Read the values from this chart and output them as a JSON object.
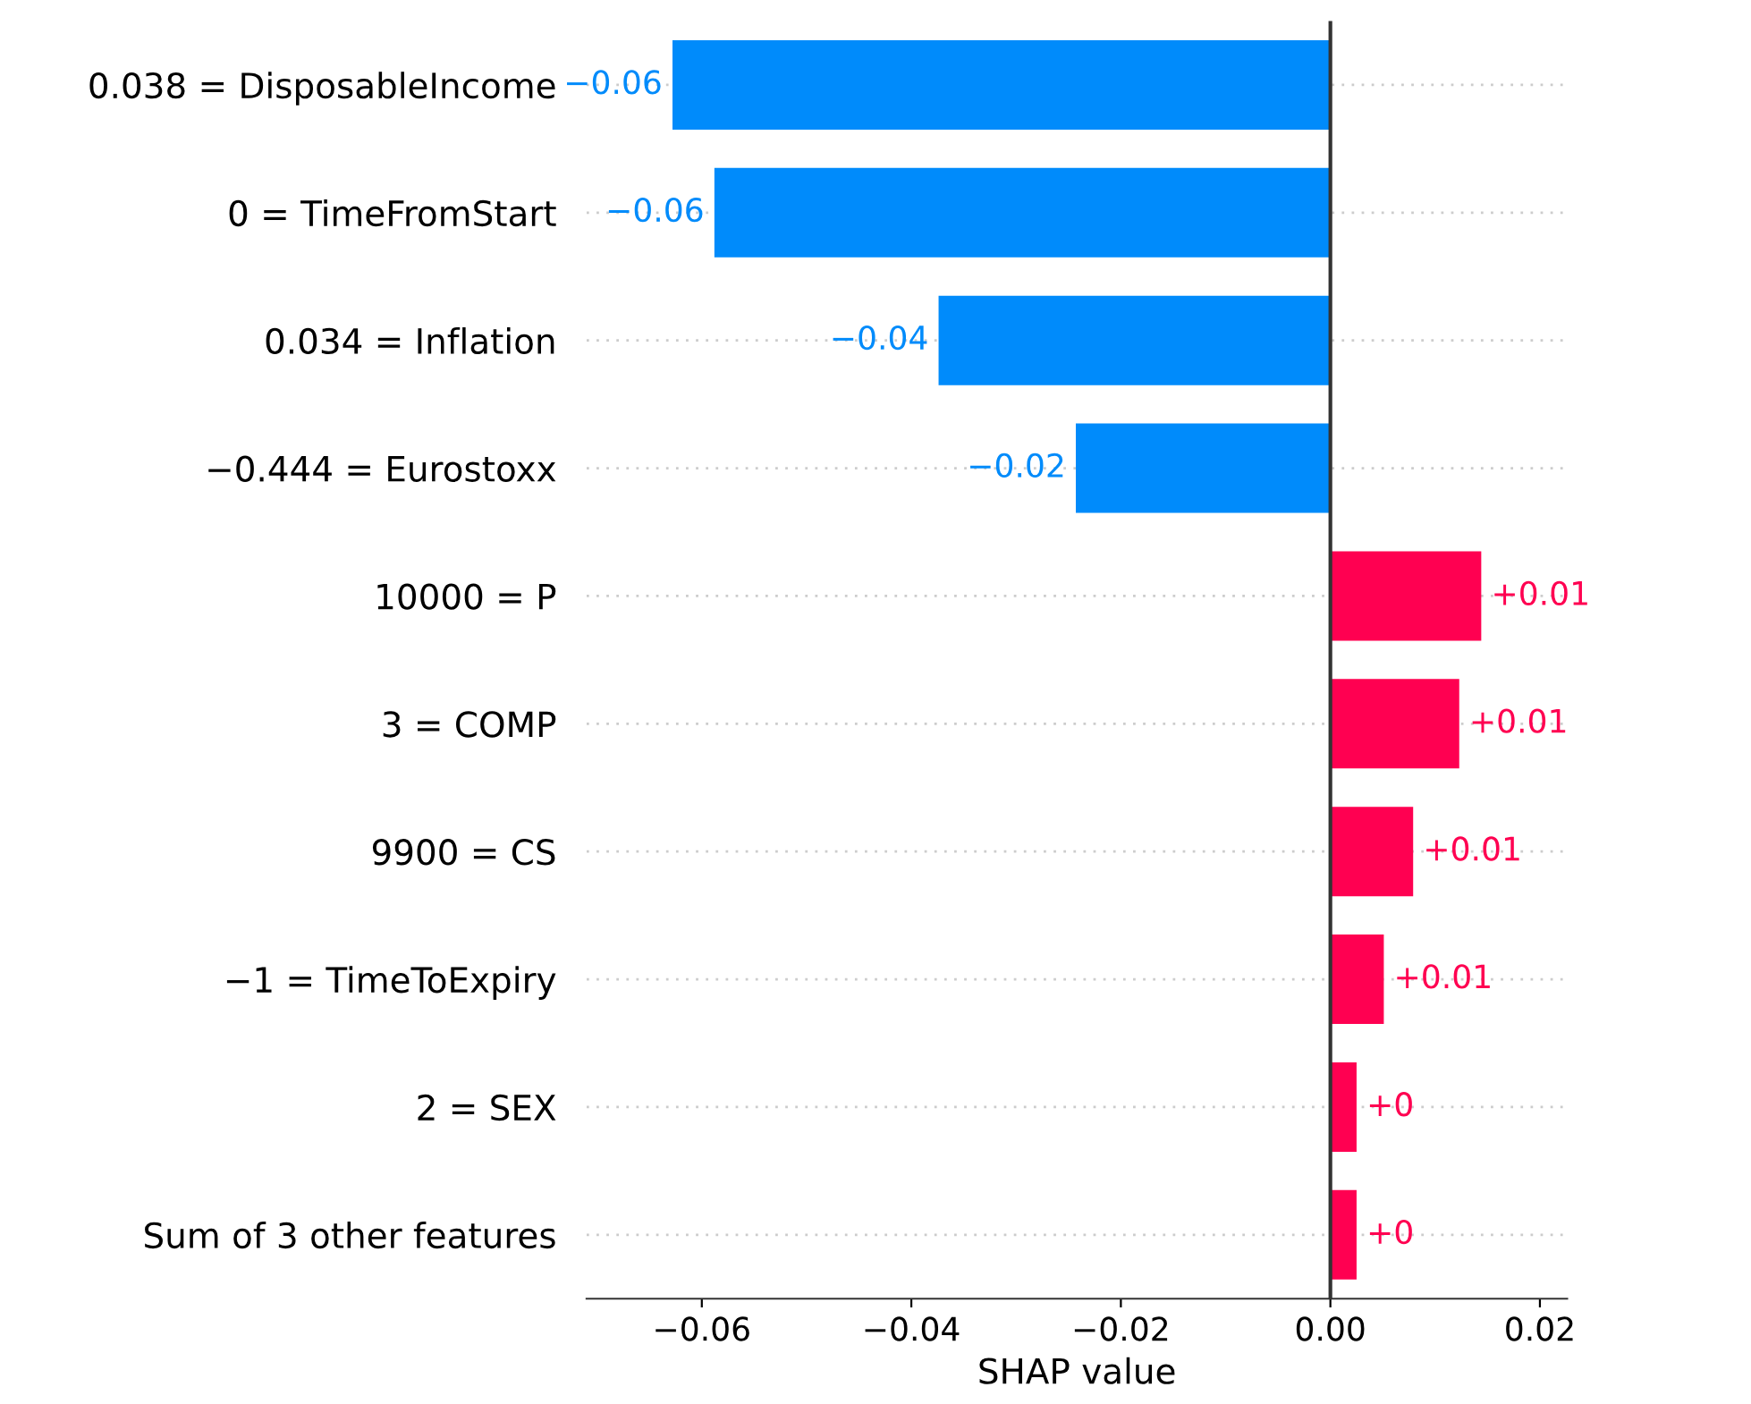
{
  "chart_data": {
    "type": "bar",
    "orientation": "horizontal",
    "xlabel": "SHAP value",
    "categories": [
      "0.038 = DisposableIncome",
      "0 = TimeFromStart",
      "0.034 = Inflation",
      "−0.444 = Eurostoxx",
      "10000 = P",
      "3 = COMP",
      "9900 = CS",
      "−1 = TimeToExpiry",
      "2 = SEX",
      "Sum of 3 other features"
    ],
    "values": [
      -0.0628,
      -0.0588,
      -0.0374,
      -0.0243,
      0.0144,
      0.0123,
      0.0079,
      0.0051,
      0.0025,
      0.0025
    ],
    "colors": [
      "#008bfb",
      "#008bfb",
      "#008bfb",
      "#008bfb",
      "#ff0051",
      "#ff0051",
      "#ff0051",
      "#ff0051",
      "#ff0051",
      "#ff0051"
    ],
    "value_labels": [
      "−0.06",
      "−0.06",
      "−0.04",
      "−0.02",
      "+0.01",
      "+0.01",
      "+0.01",
      "+0.01",
      "+0",
      "+0"
    ],
    "xlim": [
      -0.071,
      0.0226
    ],
    "xticks": [
      {
        "value": -0.06,
        "label": "−0.06"
      },
      {
        "value": -0.04,
        "label": "−0.04"
      },
      {
        "value": -0.02,
        "label": "−0.02"
      },
      {
        "value": 0,
        "label": "0.00"
      },
      {
        "value": 0.02,
        "label": "0.02"
      }
    ],
    "ref_lines": [
      {
        "axis": "x",
        "value": 0,
        "color": "#333333"
      }
    ],
    "grid": "y",
    "legend": false
  }
}
